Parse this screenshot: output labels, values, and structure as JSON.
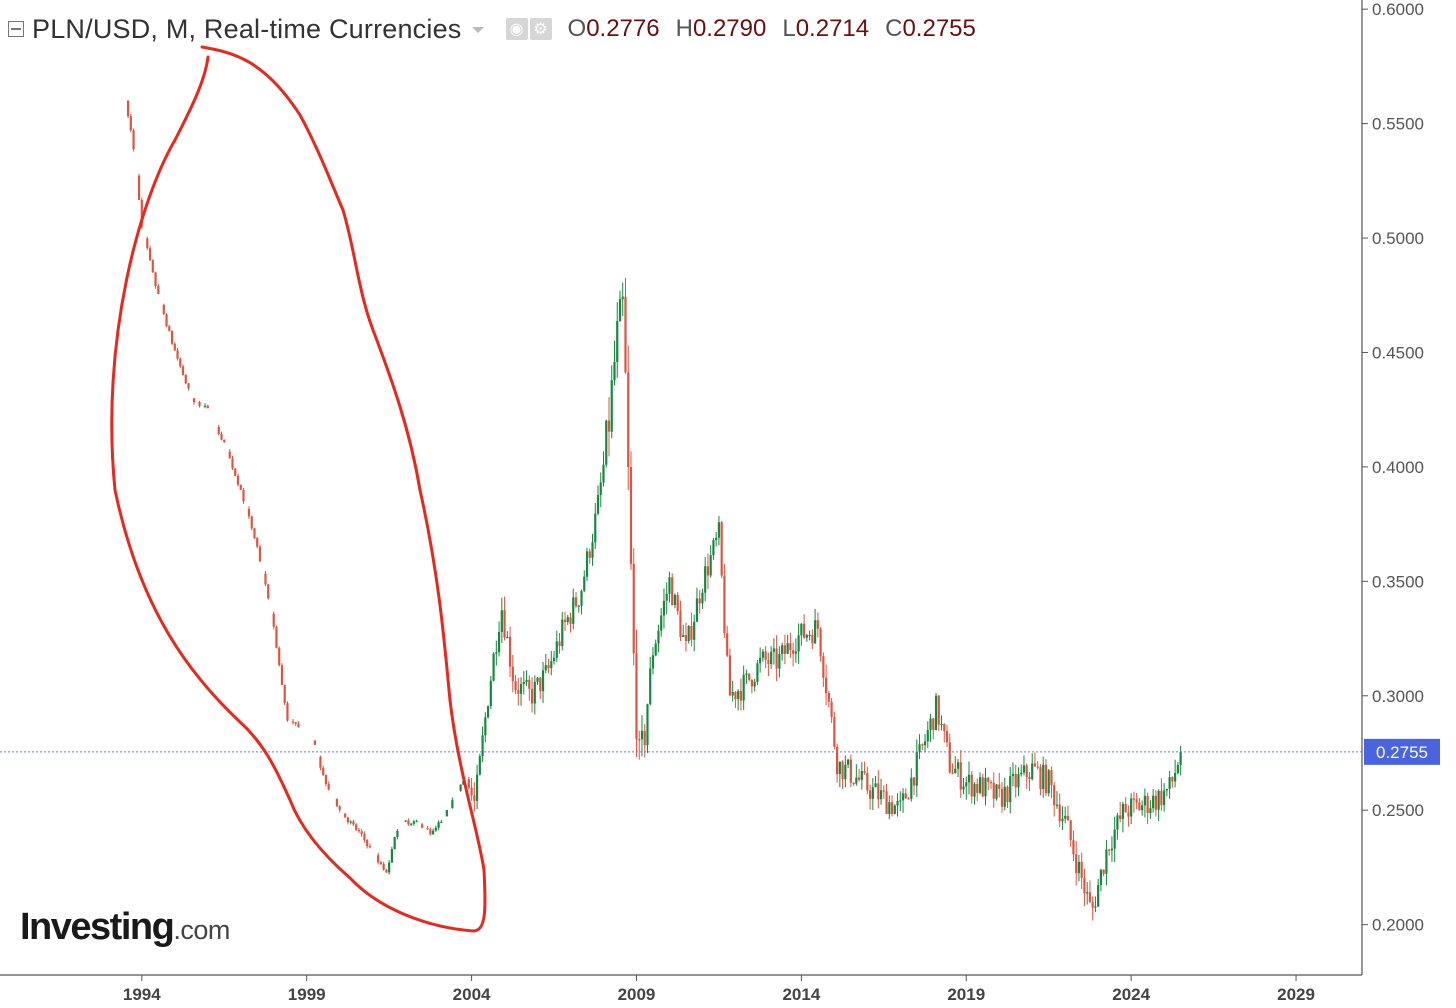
{
  "header": {
    "title": "PLN/USD, M, Real-time Currencies",
    "ohlc": {
      "open_label": "O",
      "open": "0.2776",
      "high_label": "H",
      "high": "0.2790",
      "low_label": "L",
      "low": "0.2714",
      "close_label": "C",
      "close": "0.2755"
    }
  },
  "branding": {
    "logo_main": "Investing",
    "logo_suffix": ".com"
  },
  "icons": [
    "collapse-icon",
    "dropdown-caret-icon",
    "eye-icon",
    "gear-icon"
  ],
  "colors": {
    "up": "#138a3e",
    "down": "#e0543f",
    "annotation": "#e8281c",
    "price_line": "#6b7bdc",
    "price_tag": "#4a64e0",
    "ohlc_value": "#6b0e0e"
  },
  "chart_data": {
    "type": "candlestick",
    "title": "PLN/USD, M, Real-time Currencies",
    "x_ticks": [
      "1994",
      "1999",
      "2004",
      "2009",
      "2014",
      "2019",
      "2024",
      "2029"
    ],
    "y_ticks": [
      "0.6000",
      "0.5500",
      "0.5000",
      "0.4500",
      "0.4000",
      "0.3500",
      "0.3000",
      "0.2500",
      "0.2000"
    ],
    "ylim": [
      0.178,
      0.604
    ],
    "xlim": [
      1989.7,
      2031.0
    ],
    "last_price": 0.2755,
    "last_price_label": "0.2755",
    "anchors": [
      [
        1993.5,
        0.56
      ],
      [
        1993.7,
        0.545
      ],
      [
        1994.0,
        0.505
      ],
      [
        1994.4,
        0.48
      ],
      [
        1994.9,
        0.455
      ],
      [
        1995.5,
        0.43
      ],
      [
        1996.0,
        0.425
      ],
      [
        1996.5,
        0.41
      ],
      [
        1997.0,
        0.39
      ],
      [
        1997.5,
        0.365
      ],
      [
        1998.0,
        0.33
      ],
      [
        1998.4,
        0.29
      ],
      [
        1998.8,
        0.285
      ],
      [
        1999.2,
        0.28
      ],
      [
        1999.5,
        0.265
      ],
      [
        2000.0,
        0.25
      ],
      [
        2000.6,
        0.24
      ],
      [
        2001.1,
        0.23
      ],
      [
        2001.4,
        0.222
      ],
      [
        2001.8,
        0.245
      ],
      [
        2002.3,
        0.245
      ],
      [
        2002.8,
        0.24
      ],
      [
        2003.3,
        0.25
      ],
      [
        2003.8,
        0.265
      ],
      [
        2004.1,
        0.252
      ],
      [
        2004.5,
        0.3
      ],
      [
        2004.9,
        0.34
      ],
      [
        2005.3,
        0.305
      ],
      [
        2005.8,
        0.3
      ],
      [
        2006.3,
        0.31
      ],
      [
        2006.8,
        0.33
      ],
      [
        2007.3,
        0.345
      ],
      [
        2007.8,
        0.38
      ],
      [
        2008.1,
        0.41
      ],
      [
        2008.4,
        0.455
      ],
      [
        2008.6,
        0.47
      ],
      [
        2008.9,
        0.32
      ],
      [
        2009.1,
        0.265
      ],
      [
        2009.5,
        0.32
      ],
      [
        2010.0,
        0.35
      ],
      [
        2010.5,
        0.32
      ],
      [
        2011.0,
        0.35
      ],
      [
        2011.5,
        0.37
      ],
      [
        2011.8,
        0.3
      ],
      [
        2012.3,
        0.305
      ],
      [
        2012.8,
        0.315
      ],
      [
        2013.3,
        0.315
      ],
      [
        2013.8,
        0.325
      ],
      [
        2014.5,
        0.33
      ],
      [
        2014.8,
        0.3
      ],
      [
        2015.1,
        0.27
      ],
      [
        2015.6,
        0.265
      ],
      [
        2016.0,
        0.26
      ],
      [
        2016.5,
        0.255
      ],
      [
        2017.0,
        0.25
      ],
      [
        2017.5,
        0.27
      ],
      [
        2018.1,
        0.295
      ],
      [
        2018.5,
        0.27
      ],
      [
        2019.0,
        0.262
      ],
      [
        2019.5,
        0.26
      ],
      [
        2020.0,
        0.255
      ],
      [
        2020.5,
        0.262
      ],
      [
        2021.0,
        0.268
      ],
      [
        2021.5,
        0.262
      ],
      [
        2022.0,
        0.245
      ],
      [
        2022.4,
        0.225
      ],
      [
        2022.8,
        0.205
      ],
      [
        2023.3,
        0.235
      ],
      [
        2023.8,
        0.25
      ],
      [
        2024.3,
        0.252
      ],
      [
        2024.8,
        0.255
      ],
      [
        2025.2,
        0.26
      ],
      [
        2025.5,
        0.2755
      ]
    ]
  }
}
